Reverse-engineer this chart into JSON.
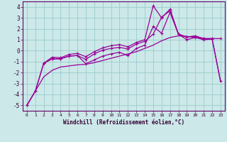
{
  "xlabel": "Windchill (Refroidissement éolien,°C)",
  "bg_color": "#cce8e8",
  "grid_color": "#99cccc",
  "line_color": "#990099",
  "xlim": [
    -0.5,
    23.5
  ],
  "ylim": [
    -5.5,
    4.5
  ],
  "xticks": [
    0,
    1,
    2,
    3,
    4,
    5,
    6,
    7,
    8,
    9,
    10,
    11,
    12,
    13,
    14,
    15,
    16,
    17,
    18,
    19,
    20,
    21,
    22,
    23
  ],
  "yticks": [
    -5,
    -4,
    -3,
    -2,
    -1,
    0,
    1,
    2,
    3,
    4
  ],
  "smooth_x": [
    0,
    1,
    2,
    3,
    4,
    5,
    6,
    7,
    8,
    9,
    10,
    11,
    12,
    13,
    14,
    15,
    16,
    17,
    18,
    19,
    20,
    21,
    22,
    23
  ],
  "smooth_y": [
    -5.0,
    -3.7,
    -2.4,
    -1.8,
    -1.5,
    -1.4,
    -1.3,
    -1.25,
    -1.1,
    -0.9,
    -0.7,
    -0.5,
    -0.3,
    -0.1,
    0.2,
    0.5,
    0.9,
    1.2,
    1.35,
    1.3,
    1.2,
    1.1,
    1.05,
    -2.8
  ],
  "line1_x": [
    0,
    1,
    2,
    3,
    4,
    5,
    6,
    7,
    8,
    9,
    10,
    11,
    12,
    13,
    14,
    15,
    16,
    17,
    18,
    19,
    20,
    21,
    22,
    23
  ],
  "line1_y": [
    -5.0,
    -3.7,
    -1.15,
    -0.6,
    -0.65,
    -0.35,
    -0.25,
    -0.55,
    -0.1,
    0.25,
    0.45,
    0.55,
    0.35,
    0.75,
    1.0,
    4.1,
    3.0,
    3.8,
    1.5,
    1.25,
    1.35,
    1.1,
    1.1,
    1.1
  ],
  "line2_x": [
    2,
    3,
    4,
    5,
    6,
    7,
    8,
    9,
    10,
    11,
    12,
    13,
    14,
    15,
    16,
    17,
    18,
    19,
    20,
    21,
    22
  ],
  "line2_y": [
    -1.15,
    -0.75,
    -0.75,
    -0.5,
    -0.45,
    -1.2,
    -0.85,
    -0.5,
    -0.3,
    -0.15,
    -0.45,
    0.2,
    0.5,
    2.2,
    1.6,
    3.5,
    1.5,
    1.0,
    1.2,
    1.0,
    1.05
  ],
  "line3_x": [
    0,
    1,
    2,
    3,
    4,
    5,
    6,
    7,
    8,
    9,
    10,
    11,
    12,
    13,
    14,
    15,
    16,
    17,
    18,
    19,
    20,
    21,
    22,
    23
  ],
  "line3_y": [
    -5.0,
    -3.7,
    -1.15,
    -0.75,
    -0.75,
    -0.5,
    -0.45,
    -0.8,
    -0.3,
    0.05,
    0.2,
    0.3,
    0.15,
    0.6,
    0.85,
    1.5,
    3.05,
    3.65,
    1.5,
    1.25,
    1.3,
    1.1,
    1.1,
    -2.8
  ]
}
